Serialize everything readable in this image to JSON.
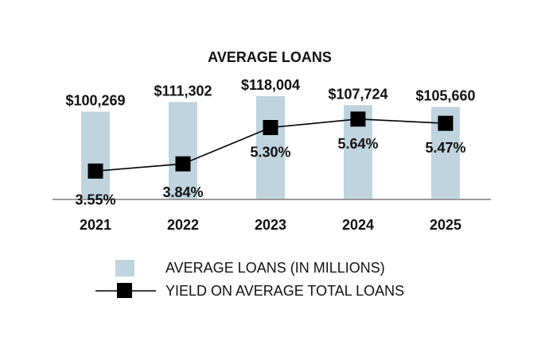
{
  "chart_data": {
    "type": "bar",
    "title": "AVERAGE LOANS",
    "categories": [
      "2021",
      "2022",
      "2023",
      "2024",
      "2025"
    ],
    "series": [
      {
        "name": "AVERAGE LOANS (IN MILLIONS)",
        "type": "bar",
        "values": [
          100269,
          111302,
          118004,
          107724,
          105660
        ],
        "labels": [
          "$100,269",
          "$111,302",
          "$118,004",
          "$107,724",
          "$105,660"
        ],
        "color": "#bfd4df"
      },
      {
        "name": "YIELD ON AVERAGE TOTAL LOANS",
        "type": "line",
        "values": [
          3.55,
          3.84,
          5.3,
          5.64,
          5.47
        ],
        "labels": [
          "3.55%",
          "3.84%",
          "5.30%",
          "5.64%",
          "5.47%"
        ],
        "color": "#000000"
      }
    ],
    "legend_position": "bottom",
    "grid": false
  }
}
